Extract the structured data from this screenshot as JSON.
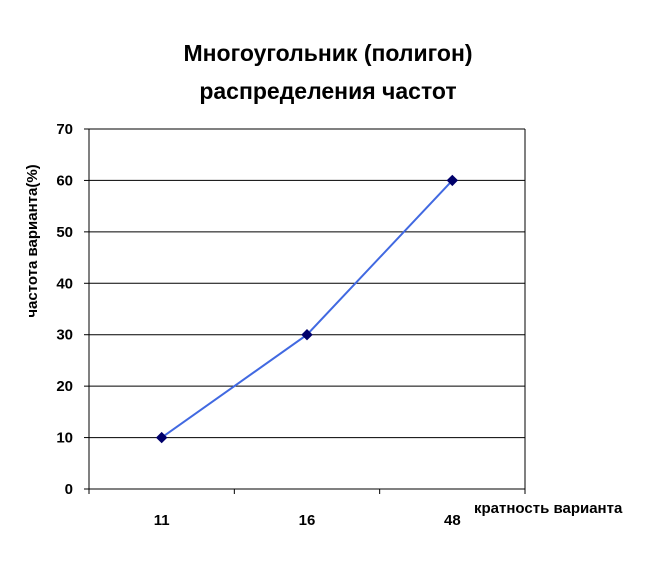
{
  "chart_data": {
    "type": "line",
    "title_lines": [
      "Многоугольник (полигон)",
      "распределения частот"
    ],
    "xlabel": "кратность варианта",
    "ylabel": "частота варианта(%)",
    "categories": [
      "11",
      "16",
      "48"
    ],
    "series": [
      {
        "values": [
          10,
          30,
          60
        ]
      }
    ],
    "ylim": [
      0,
      70
    ],
    "yticks": [
      0,
      10,
      20,
      30,
      40,
      50,
      60,
      70
    ],
    "grid": true,
    "line_color": "#4169E1",
    "marker_color": "#00006B",
    "marker": "diamond"
  }
}
